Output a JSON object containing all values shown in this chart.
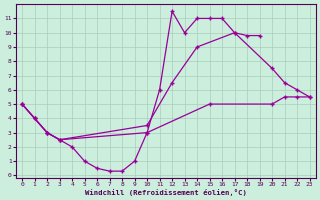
{
  "xlabel": "Windchill (Refroidissement éolien,°C)",
  "bg_color": "#cceedd",
  "grid_color": "#aaccbb",
  "line_color": "#990099",
  "xlim": [
    -0.5,
    23.5
  ],
  "ylim": [
    -0.2,
    12
  ],
  "xticks": [
    0,
    1,
    2,
    3,
    4,
    5,
    6,
    7,
    8,
    9,
    10,
    11,
    12,
    13,
    14,
    15,
    16,
    17,
    18,
    19,
    20,
    21,
    22,
    23
  ],
  "yticks": [
    0,
    1,
    2,
    3,
    4,
    5,
    6,
    7,
    8,
    9,
    10,
    11
  ],
  "s1_x": [
    0,
    1,
    2,
    3,
    4,
    5,
    6,
    7,
    8,
    9,
    10,
    11,
    12,
    13,
    14,
    15,
    16,
    17,
    18,
    19
  ],
  "s1_y": [
    5,
    4,
    3,
    2.5,
    2,
    1,
    0.5,
    0.3,
    0.3,
    1,
    3,
    6,
    11.5,
    10,
    11,
    11,
    11,
    10,
    9.8,
    9.8
  ],
  "s2_x": [
    0,
    1,
    2,
    3,
    10,
    12,
    14,
    17,
    20,
    21,
    22,
    23
  ],
  "s2_y": [
    5,
    4,
    3,
    2.5,
    3.5,
    6.5,
    9,
    10,
    7.5,
    6.5,
    6.0,
    5.5
  ],
  "s3_x": [
    0,
    1,
    2,
    3,
    10,
    15,
    20,
    21,
    22,
    23
  ],
  "s3_y": [
    5,
    4,
    3,
    2.5,
    3,
    5,
    5,
    5.5,
    5.5,
    5.5
  ]
}
